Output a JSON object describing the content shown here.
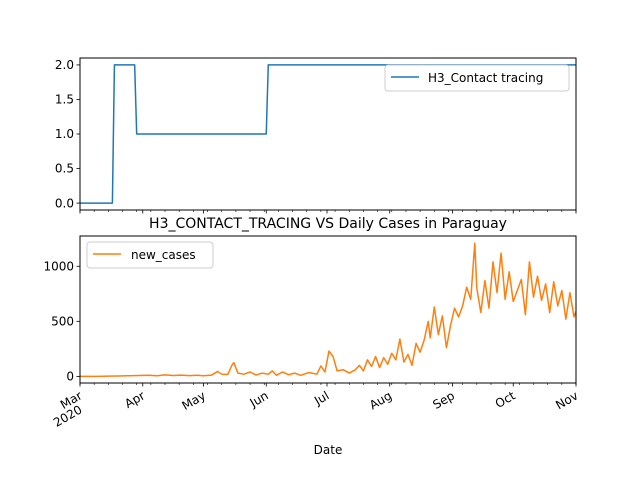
{
  "chart_data": [
    {
      "type": "line",
      "title": "",
      "xlabel": "",
      "ylabel": "",
      "ylim": [
        -0.1,
        2.1
      ],
      "yticks": [
        "0.0",
        "0.5",
        "1.0",
        "1.5",
        "2.0"
      ],
      "legend_position": "top-right",
      "grid": false,
      "series": [
        {
          "name": "H3_Contact tracing",
          "color": "#1f77b4",
          "points": [
            [
              "2020-03-01",
              0
            ],
            [
              "2020-03-17",
              0
            ],
            [
              "2020-03-18",
              2
            ],
            [
              "2020-03-28",
              2
            ],
            [
              "2020-03-29",
              1
            ],
            [
              "2020-06-01",
              1
            ],
            [
              "2020-06-02",
              2
            ],
            [
              "2020-11-01",
              2
            ]
          ]
        }
      ]
    },
    {
      "type": "line",
      "title": "H3_CONTACT_TRACING VS Daily Cases in Paraguay",
      "xlabel": "Date",
      "ylabel": "",
      "ylim": [
        -60,
        1275
      ],
      "yticks": [
        "0",
        "500",
        "1000"
      ],
      "legend_position": "top-left",
      "grid": false,
      "x_ticks": [
        {
          "date": "2020-03-01",
          "label": "Mar",
          "sub": "2020"
        },
        {
          "date": "2020-04-01",
          "label": "Apr"
        },
        {
          "date": "2020-05-01",
          "label": "May"
        },
        {
          "date": "2020-06-01",
          "label": "Jun"
        },
        {
          "date": "2020-07-01",
          "label": "Jul"
        },
        {
          "date": "2020-08-01",
          "label": "Aug"
        },
        {
          "date": "2020-09-01",
          "label": "Sep"
        },
        {
          "date": "2020-10-01",
          "label": "Oct"
        },
        {
          "date": "2020-11-01",
          "label": "Nov"
        }
      ],
      "series": [
        {
          "name": "new_cases",
          "color": "#ff7f0e",
          "points": [
            [
              "2020-03-01",
              0
            ],
            [
              "2020-03-10",
              0
            ],
            [
              "2020-03-15",
              2
            ],
            [
              "2020-03-20",
              4
            ],
            [
              "2020-03-25",
              6
            ],
            [
              "2020-03-30",
              8
            ],
            [
              "2020-04-04",
              10
            ],
            [
              "2020-04-08",
              6
            ],
            [
              "2020-04-12",
              14
            ],
            [
              "2020-04-16",
              8
            ],
            [
              "2020-04-20",
              12
            ],
            [
              "2020-04-24",
              7
            ],
            [
              "2020-04-28",
              10
            ],
            [
              "2020-05-01",
              6
            ],
            [
              "2020-05-05",
              12
            ],
            [
              "2020-05-08",
              45
            ],
            [
              "2020-05-10",
              20
            ],
            [
              "2020-05-13",
              18
            ],
            [
              "2020-05-15",
              100
            ],
            [
              "2020-05-16",
              125
            ],
            [
              "2020-05-18",
              30
            ],
            [
              "2020-05-21",
              20
            ],
            [
              "2020-05-24",
              40
            ],
            [
              "2020-05-27",
              12
            ],
            [
              "2020-05-30",
              30
            ],
            [
              "2020-06-02",
              20
            ],
            [
              "2020-06-04",
              50
            ],
            [
              "2020-06-06",
              10
            ],
            [
              "2020-06-09",
              40
            ],
            [
              "2020-06-12",
              15
            ],
            [
              "2020-06-15",
              30
            ],
            [
              "2020-06-18",
              10
            ],
            [
              "2020-06-22",
              35
            ],
            [
              "2020-06-26",
              20
            ],
            [
              "2020-06-28",
              95
            ],
            [
              "2020-06-30",
              40
            ],
            [
              "2020-07-02",
              230
            ],
            [
              "2020-07-04",
              180
            ],
            [
              "2020-07-06",
              50
            ],
            [
              "2020-07-09",
              60
            ],
            [
              "2020-07-12",
              30
            ],
            [
              "2020-07-15",
              60
            ],
            [
              "2020-07-17",
              100
            ],
            [
              "2020-07-19",
              50
            ],
            [
              "2020-07-21",
              150
            ],
            [
              "2020-07-23",
              90
            ],
            [
              "2020-07-25",
              180
            ],
            [
              "2020-07-27",
              80
            ],
            [
              "2020-07-29",
              170
            ],
            [
              "2020-07-31",
              110
            ],
            [
              "2020-08-02",
              210
            ],
            [
              "2020-08-04",
              150
            ],
            [
              "2020-08-06",
              340
            ],
            [
              "2020-08-08",
              130
            ],
            [
              "2020-08-10",
              200
            ],
            [
              "2020-08-12",
              100
            ],
            [
              "2020-08-14",
              300
            ],
            [
              "2020-08-16",
              220
            ],
            [
              "2020-08-18",
              330
            ],
            [
              "2020-08-20",
              500
            ],
            [
              "2020-08-21",
              350
            ],
            [
              "2020-08-23",
              630
            ],
            [
              "2020-08-25",
              380
            ],
            [
              "2020-08-27",
              550
            ],
            [
              "2020-08-29",
              260
            ],
            [
              "2020-08-31",
              460
            ],
            [
              "2020-09-02",
              620
            ],
            [
              "2020-09-04",
              540
            ],
            [
              "2020-09-06",
              640
            ],
            [
              "2020-09-08",
              810
            ],
            [
              "2020-09-10",
              700
            ],
            [
              "2020-09-12",
              1210
            ],
            [
              "2020-09-13",
              800
            ],
            [
              "2020-09-15",
              580
            ],
            [
              "2020-09-17",
              870
            ],
            [
              "2020-09-19",
              620
            ],
            [
              "2020-09-21",
              1040
            ],
            [
              "2020-09-23",
              760
            ],
            [
              "2020-09-25",
              1120
            ],
            [
              "2020-09-27",
              700
            ],
            [
              "2020-09-29",
              950
            ],
            [
              "2020-10-01",
              680
            ],
            [
              "2020-10-03",
              780
            ],
            [
              "2020-10-05",
              880
            ],
            [
              "2020-10-07",
              560
            ],
            [
              "2020-10-09",
              1040
            ],
            [
              "2020-10-11",
              720
            ],
            [
              "2020-10-13",
              910
            ],
            [
              "2020-10-15",
              690
            ],
            [
              "2020-10-17",
              840
            ],
            [
              "2020-10-19",
              580
            ],
            [
              "2020-10-21",
              860
            ],
            [
              "2020-10-23",
              640
            ],
            [
              "2020-10-25",
              780
            ],
            [
              "2020-10-27",
              520
            ],
            [
              "2020-10-29",
              760
            ],
            [
              "2020-10-31",
              540
            ],
            [
              "2020-11-01",
              590
            ]
          ]
        }
      ]
    }
  ]
}
